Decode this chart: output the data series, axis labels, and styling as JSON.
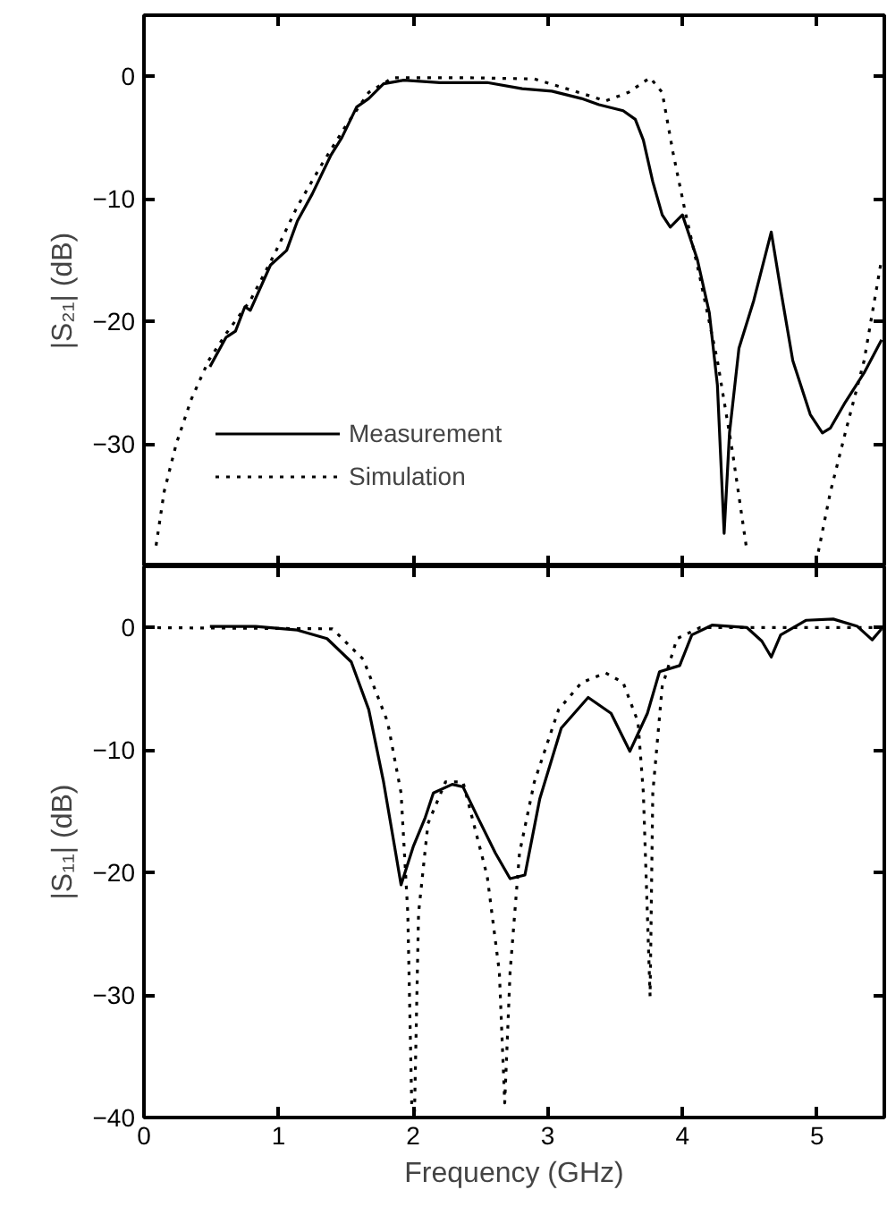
{
  "chart_data": [
    {
      "type": "line",
      "ylabel": "|S₂₁| (dB)",
      "xlim": [
        0,
        5.5
      ],
      "xticks": [
        0,
        1,
        2,
        3,
        4,
        5
      ],
      "ylim": [
        -40,
        5
      ],
      "yticks": [
        0,
        -10,
        -20,
        -30
      ],
      "tick_labels": "y",
      "legend": "bottom left",
      "grid": false,
      "series": [
        {
          "name": "Measurement",
          "color": "#000000",
          "line_style": "solid",
          "x": [
            0.49,
            0.61,
            0.68,
            0.75,
            0.79,
            0.94,
            1.06,
            1.14,
            1.25,
            1.39,
            1.47,
            1.58,
            1.67,
            1.78,
            1.93,
            2.2,
            2.55,
            2.81,
            3.03,
            3.25,
            3.38,
            3.56,
            3.65,
            3.71,
            3.78,
            3.85,
            3.91,
            4.0,
            4.11,
            4.2,
            4.26,
            4.31,
            4.35,
            4.42,
            4.53,
            4.66,
            4.73,
            4.82,
            4.95,
            5.04,
            5.1,
            5.21,
            5.35,
            5.48
          ],
          "values": [
            -23.7,
            -21.3,
            -20.8,
            -18.8,
            -19.1,
            -15.4,
            -14.2,
            -11.8,
            -9.6,
            -6.4,
            -5.0,
            -2.5,
            -1.8,
            -0.6,
            -0.3,
            -0.5,
            -0.5,
            -1.0,
            -1.2,
            -1.8,
            -2.3,
            -2.8,
            -3.5,
            -5.2,
            -8.6,
            -11.3,
            -12.3,
            -11.3,
            -14.9,
            -19.3,
            -25.2,
            -37.3,
            -29.1,
            -22.2,
            -18.3,
            -12.7,
            -17.4,
            -23.2,
            -27.6,
            -29.1,
            -28.7,
            -26.6,
            -24.2,
            -21.5
          ]
        },
        {
          "name": "Simulation",
          "color": "#000000",
          "line_style": "dotted",
          "x": [
            0.09,
            0.15,
            0.24,
            0.35,
            0.48,
            0.61,
            0.79,
            0.97,
            1.14,
            1.32,
            1.49,
            1.67,
            1.85,
            2.38,
            2.9,
            3.17,
            3.43,
            3.6,
            3.76,
            3.85,
            3.93,
            4.02,
            4.13,
            4.26,
            4.37,
            4.48,
            4.75,
            5.01,
            5.1,
            5.21,
            5.35,
            5.48
          ],
          "values": [
            -38.3,
            -33.9,
            -30.0,
            -26.4,
            -23.2,
            -21.0,
            -18.3,
            -14.5,
            -10.6,
            -7.2,
            -4.2,
            -1.3,
            -0.1,
            -0.1,
            -0.2,
            -1.1,
            -2.0,
            -1.3,
            -0.1,
            -1.3,
            -6.2,
            -11.0,
            -16.4,
            -23.2,
            -30.5,
            -38.8,
            null,
            -38.8,
            -33.9,
            -29.1,
            -23.2,
            -14.9
          ]
        }
      ]
    },
    {
      "type": "line",
      "xlabel": "Frequency (GHz)",
      "ylabel": "|S₁₁| (dB)",
      "xlim": [
        0,
        5.5
      ],
      "xticks": [
        0,
        1,
        2,
        3,
        4,
        5
      ],
      "ylim": [
        -40,
        5
      ],
      "yticks": [
        0,
        -10,
        -20,
        -30,
        -40
      ],
      "grid": false,
      "legend": false,
      "series": [
        {
          "color": "#000000",
          "line_style": "solid",
          "x": [
            0.49,
            0.83,
            1.14,
            1.36,
            1.54,
            1.67,
            1.78,
            1.87,
            1.91,
            2.0,
            2.09,
            2.15,
            2.29,
            2.37,
            2.48,
            2.61,
            2.72,
            2.83,
            2.94,
            3.1,
            3.3,
            3.47,
            3.61,
            3.74,
            3.83,
            3.98,
            4.07,
            4.22,
            4.48,
            4.59,
            4.66,
            4.73,
            4.92,
            5.12,
            5.3,
            5.41,
            5.48
          ],
          "values": [
            0.1,
            0.1,
            -0.2,
            -0.9,
            -2.8,
            -6.7,
            -12.6,
            -18.4,
            -21.0,
            -17.9,
            -15.5,
            -13.5,
            -12.8,
            -13.0,
            -15.5,
            -18.4,
            -20.5,
            -20.2,
            -14.0,
            -8.2,
            -5.7,
            -7.0,
            -10.1,
            -7.0,
            -3.6,
            -3.1,
            -0.6,
            0.2,
            0.0,
            -1.1,
            -2.4,
            -0.6,
            0.6,
            0.7,
            0.1,
            -1.0,
            -0.1
          ]
        },
        {
          "color": "#000000",
          "line_style": "dotted",
          "x": [
            0.02,
            1.4,
            1.63,
            1.81,
            1.91,
            1.96,
            1.99,
            2.01,
            2.04,
            2.11,
            2.24,
            2.37,
            2.55,
            2.64,
            2.68,
            2.72,
            2.79,
            2.9,
            3.08,
            3.25,
            3.43,
            3.56,
            3.67,
            3.71,
            3.76,
            3.78,
            3.85,
            3.96,
            4.13,
            5.48
          ],
          "values": [
            0,
            -0.1,
            -2.6,
            -7.7,
            -13.5,
            -23.3,
            -39.3,
            -39.5,
            -23.3,
            -16.0,
            -12.6,
            -12.6,
            -20.3,
            -28.1,
            -38.8,
            -28.1,
            -18.4,
            -12.6,
            -6.7,
            -4.5,
            -3.7,
            -4.5,
            -7.7,
            -13.5,
            -30.1,
            -13.5,
            -4.8,
            -0.9,
            0,
            0
          ]
        }
      ]
    }
  ]
}
